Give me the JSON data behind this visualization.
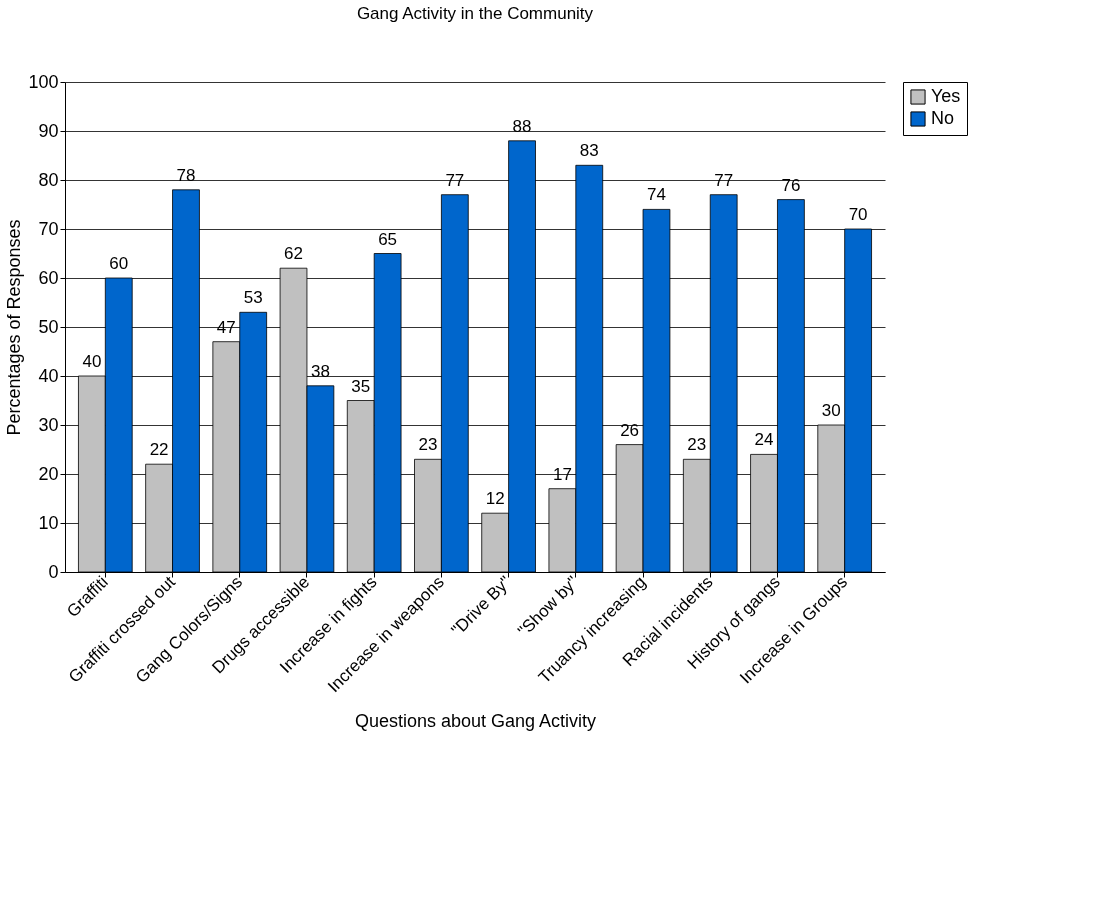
{
  "chart_data": {
    "type": "bar",
    "title": "Gang Activity in the Community",
    "xlabel": "Questions about Gang Activity",
    "ylabel": "Percentages of Responses",
    "categories": [
      "Graffiti",
      "Graffiti crossed out",
      "Gang Colors/Signs",
      "Drugs accessible",
      "Increase in fights",
      "Increase in weapons",
      "\"Drive By\"",
      "\"Show by\"",
      "Truancy increasing",
      "Racial incidents",
      "History of gangs",
      "Increase in Groups"
    ],
    "series": [
      {
        "name": "Yes",
        "color": "#c0c0c0",
        "values": [
          40,
          22,
          47,
          62,
          35,
          23,
          12,
          17,
          26,
          23,
          24,
          30
        ]
      },
      {
        "name": "No",
        "color": "#0066cc",
        "values": [
          60,
          78,
          53,
          38,
          65,
          77,
          88,
          83,
          74,
          77,
          76,
          70
        ]
      }
    ],
    "ylim": [
      0,
      100
    ],
    "yticks": [
      0,
      10,
      20,
      30,
      40,
      50,
      60,
      70,
      80,
      90,
      100
    ],
    "grid": "y",
    "legend": "right",
    "data_labels": true
  }
}
